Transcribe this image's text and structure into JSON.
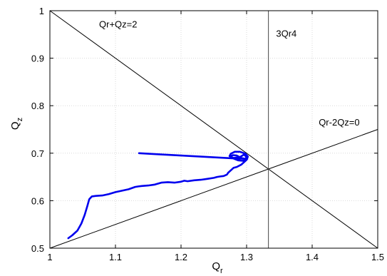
{
  "chart_data": {
    "type": "line",
    "xlabel": "Q",
    "xlabel_sub": "r",
    "ylabel": "Q",
    "ylabel_sub": "z",
    "xlim": [
      1,
      1.5
    ],
    "ylim": [
      0.5,
      1
    ],
    "x_ticks": [
      1,
      1.1,
      1.2,
      1.3,
      1.4,
      1.5
    ],
    "x_tick_labels": [
      "1",
      "1.1",
      "1.2",
      "1.3",
      "1.4",
      "1.5"
    ],
    "y_ticks": [
      0.5,
      0.6,
      0.7,
      0.8,
      0.9,
      1
    ],
    "y_tick_labels": [
      "0.5",
      "0.6",
      "0.7",
      "0.8",
      "0.9",
      "1"
    ],
    "grid": true,
    "reference_lines": [
      {
        "label": "Qr+Qz=2",
        "x": [
          1.0,
          1.5
        ],
        "y": [
          1.0,
          0.5
        ],
        "color": "#000000"
      },
      {
        "label": "Qr-2Qz=0",
        "x": [
          1.0,
          1.5
        ],
        "y": [
          0.5,
          0.75
        ],
        "color": "#000000"
      },
      {
        "label": "3Qr4",
        "x": [
          1.3333,
          1.3333
        ],
        "y": [
          0.5,
          1.0
        ],
        "color": "#444444"
      }
    ],
    "annotations": [
      {
        "text": "Qr+Qz=2",
        "x": 1.075,
        "y": 0.965
      },
      {
        "text": "3Qr4",
        "x": 1.345,
        "y": 0.945
      },
      {
        "text": "Qr-2Qz=0",
        "x": 1.41,
        "y": 0.758
      }
    ],
    "series": [
      {
        "color": "#0000ee",
        "x": [
          1.028,
          1.034,
          1.042,
          1.048,
          1.053,
          1.057,
          1.06,
          1.064,
          1.07,
          1.08,
          1.09,
          1.1,
          1.11,
          1.12,
          1.13,
          1.135,
          1.14,
          1.15,
          1.16,
          1.17,
          1.18,
          1.19,
          1.2,
          1.205,
          1.21,
          1.22,
          1.23,
          1.24,
          1.25,
          1.255,
          1.26,
          1.265,
          1.27,
          1.272,
          1.276,
          1.28,
          1.285,
          1.292,
          1.3,
          1.302,
          1.298,
          1.29,
          1.282,
          1.276,
          1.274,
          1.28,
          1.29,
          1.296,
          1.3,
          1.298,
          1.292,
          1.285,
          1.279,
          1.275,
          1.2795,
          1.287,
          1.294,
          1.3,
          1.301,
          1.28,
          1.24,
          1.2,
          1.16,
          1.136
        ],
        "y": [
          0.521,
          0.527,
          0.537,
          0.552,
          0.57,
          0.588,
          0.603,
          0.609,
          0.61,
          0.611,
          0.614,
          0.618,
          0.621,
          0.624,
          0.629,
          0.63,
          0.631,
          0.632,
          0.634,
          0.638,
          0.639,
          0.638,
          0.64,
          0.642,
          0.641,
          0.643,
          0.644,
          0.646,
          0.648,
          0.65,
          0.651,
          0.652,
          0.655,
          0.659,
          0.664,
          0.669,
          0.671,
          0.676,
          0.686,
          0.693,
          0.699,
          0.703,
          0.703,
          0.699,
          0.694,
          0.69,
          0.692,
          0.697,
          0.692,
          0.688,
          0.69,
          0.695,
          0.696,
          0.693,
          0.689,
          0.685,
          0.684,
          0.687,
          0.688,
          0.689,
          0.692,
          0.695,
          0.698,
          0.7
        ]
      }
    ]
  }
}
